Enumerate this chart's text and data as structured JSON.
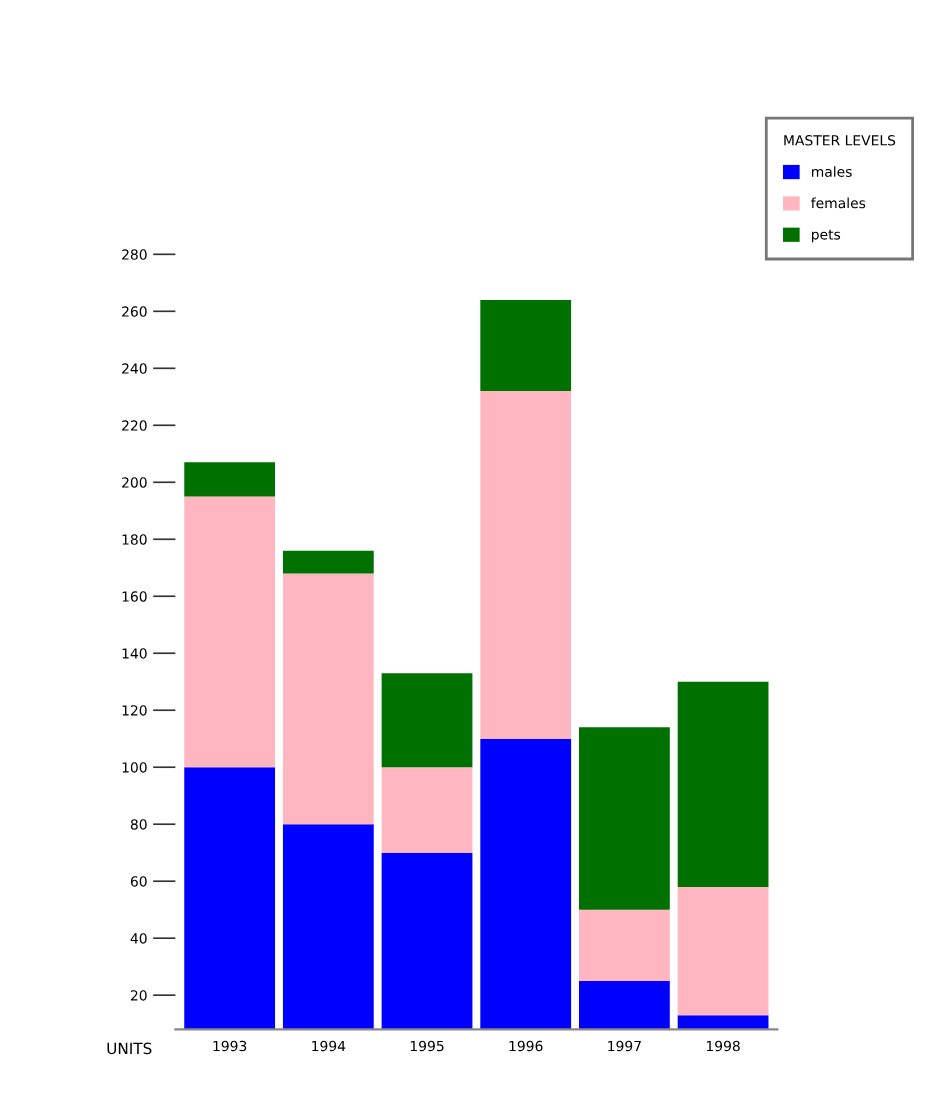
{
  "chart_data": {
    "type": "bar",
    "stacked": true,
    "ylabel": "UNITS",
    "legend_title": "MASTER LEVELS",
    "legend": "top right",
    "categories": [
      "1993",
      "1994",
      "1995",
      "1996",
      "1997",
      "1998"
    ],
    "series": [
      {
        "name": "males",
        "color": "#0000ff",
        "values": [
          100,
          80,
          70,
          110,
          25,
          13
        ]
      },
      {
        "name": "females",
        "color": "#ffb6c1",
        "values": [
          95,
          88,
          30,
          122,
          25,
          45
        ]
      },
      {
        "name": "pets",
        "color": "#007000",
        "values": [
          12,
          8,
          33,
          32,
          64,
          72
        ]
      }
    ],
    "ylim": [
      8,
      280
    ],
    "yticks": [
      20,
      40,
      60,
      80,
      100,
      120,
      140,
      160,
      180,
      200,
      220,
      240,
      260,
      280
    ],
    "grid": false
  }
}
